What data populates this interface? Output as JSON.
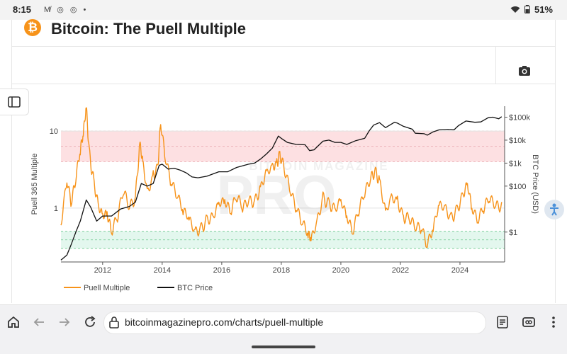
{
  "status_bar": {
    "time": "8:15",
    "left_icons": "M̸ ◎ ◎ •",
    "battery": "51%"
  },
  "header": {
    "logo_symbol": "₿",
    "title": "Bitcoin: The Puell Multiple"
  },
  "browser": {
    "url": "bitcoinmagazinepro.com/charts/puell-multiple"
  },
  "colors": {
    "accent": "#f7931a",
    "price_line": "#111111",
    "red_band": "#fde0e2",
    "green_band": "#e3f7ee"
  },
  "chart_data": {
    "type": "line",
    "title": "Bitcoin: The Puell Multiple",
    "watermark": "BITCOIN MAGAZINE",
    "watermark_sub": "PRO",
    "ylabel_left": "Puell 365 Multiple",
    "ylabel_right": "BTC Price (USD)",
    "x_ticks": [
      "2012",
      "2014",
      "2016",
      "2018",
      "2020",
      "2022",
      "2024"
    ],
    "xlim": [
      2010.6,
      2025.5
    ],
    "y_left_ticks": [
      {
        "value": 1,
        "label": "1"
      },
      {
        "value": 10,
        "label": "10"
      }
    ],
    "y_left_range": [
      0.2,
      21
    ],
    "y_right_ticks": [
      {
        "value": 1,
        "label": "$1"
      },
      {
        "value": 100,
        "label": "$100"
      },
      {
        "value": 1000,
        "label": "$1k"
      },
      {
        "value": 10000,
        "label": "$10k"
      },
      {
        "value": 100000,
        "label": "$100k"
      }
    ],
    "y_right_range": [
      0.05,
      300000
    ],
    "bands": [
      {
        "name": "high zone",
        "from": 4,
        "to": 10,
        "color": "#fde0e2"
      },
      {
        "name": "low zone",
        "from": 0.3,
        "to": 0.5,
        "color": "#e3f7ee"
      }
    ],
    "legend": [
      {
        "name": "Puell Multiple",
        "color": "#f7931a"
      },
      {
        "name": "BTC Price",
        "color": "#111111"
      }
    ],
    "series": [
      {
        "name": "Puell Multiple",
        "color": "#f7931a",
        "points": [
          [
            2010.6,
            0.6
          ],
          [
            2010.8,
            2.0
          ],
          [
            2010.95,
            1.2
          ],
          [
            2011.1,
            3.0
          ],
          [
            2011.25,
            6.0
          ],
          [
            2011.35,
            8.0
          ],
          [
            2011.45,
            20.0
          ],
          [
            2011.55,
            6.0
          ],
          [
            2011.7,
            2.5
          ],
          [
            2011.85,
            1.0
          ],
          [
            2012.0,
            0.7
          ],
          [
            2012.15,
            0.9
          ],
          [
            2012.3,
            0.6
          ],
          [
            2012.5,
            0.8
          ],
          [
            2012.7,
            1.5
          ],
          [
            2012.9,
            1.0
          ],
          [
            2013.1,
            1.6
          ],
          [
            2013.25,
            7.5
          ],
          [
            2013.35,
            3.5
          ],
          [
            2013.5,
            1.4
          ],
          [
            2013.7,
            2.8
          ],
          [
            2013.85,
            4.0
          ],
          [
            2013.95,
            12.5
          ],
          [
            2014.1,
            4.0
          ],
          [
            2014.3,
            2.2
          ],
          [
            2014.5,
            1.8
          ],
          [
            2014.7,
            1.0
          ],
          [
            2014.9,
            0.65
          ],
          [
            2015.1,
            0.45
          ],
          [
            2015.3,
            0.6
          ],
          [
            2015.5,
            0.8
          ],
          [
            2015.7,
            0.7
          ],
          [
            2015.9,
            1.0
          ],
          [
            2016.1,
            1.3
          ],
          [
            2016.3,
            1.1
          ],
          [
            2016.5,
            1.5
          ],
          [
            2016.7,
            0.9
          ],
          [
            2016.9,
            1.2
          ],
          [
            2017.1,
            1.4
          ],
          [
            2017.3,
            2.0
          ],
          [
            2017.5,
            2.6
          ],
          [
            2017.7,
            3.0
          ],
          [
            2017.85,
            4.0
          ],
          [
            2017.95,
            6.0
          ],
          [
            2018.1,
            3.2
          ],
          [
            2018.3,
            1.5
          ],
          [
            2018.5,
            1.0
          ],
          [
            2018.7,
            0.8
          ],
          [
            2018.9,
            0.5
          ],
          [
            2019.0,
            0.35
          ],
          [
            2019.2,
            0.6
          ],
          [
            2019.4,
            1.5
          ],
          [
            2019.6,
            1.3
          ],
          [
            2019.8,
            0.9
          ],
          [
            2020.0,
            1.1
          ],
          [
            2020.2,
            0.8
          ],
          [
            2020.4,
            0.6
          ],
          [
            2020.6,
            1.0
          ],
          [
            2020.8,
            1.4
          ],
          [
            2021.0,
            2.3
          ],
          [
            2021.15,
            3.5
          ],
          [
            2021.3,
            2.5
          ],
          [
            2021.5,
            0.8
          ],
          [
            2021.7,
            1.2
          ],
          [
            2021.9,
            1.3
          ],
          [
            2022.1,
            0.9
          ],
          [
            2022.3,
            0.75
          ],
          [
            2022.5,
            0.5
          ],
          [
            2022.7,
            0.55
          ],
          [
            2022.9,
            0.4
          ],
          [
            2023.1,
            0.6
          ],
          [
            2023.3,
            1.0
          ],
          [
            2023.5,
            0.9
          ],
          [
            2023.7,
            0.8
          ],
          [
            2023.9,
            1.1
          ],
          [
            2024.1,
            1.4
          ],
          [
            2024.25,
            1.8
          ],
          [
            2024.4,
            1.0
          ],
          [
            2024.6,
            0.85
          ],
          [
            2024.8,
            1.1
          ],
          [
            2025.0,
            1.2
          ],
          [
            2025.2,
            1.0
          ],
          [
            2025.4,
            1.2
          ]
        ]
      },
      {
        "name": "BTC Price",
        "color": "#111111",
        "points": [
          [
            2010.6,
            0.06
          ],
          [
            2010.8,
            0.1
          ],
          [
            2010.95,
            0.3
          ],
          [
            2011.1,
            1
          ],
          [
            2011.25,
            3
          ],
          [
            2011.45,
            25
          ],
          [
            2011.6,
            12
          ],
          [
            2011.8,
            3
          ],
          [
            2012.0,
            5
          ],
          [
            2012.3,
            5
          ],
          [
            2012.6,
            10
          ],
          [
            2012.9,
            13
          ],
          [
            2013.1,
            20
          ],
          [
            2013.3,
            130
          ],
          [
            2013.5,
            100
          ],
          [
            2013.7,
            130
          ],
          [
            2013.9,
            800
          ],
          [
            2014.0,
            900
          ],
          [
            2014.2,
            550
          ],
          [
            2014.4,
            600
          ],
          [
            2014.6,
            500
          ],
          [
            2014.8,
            380
          ],
          [
            2015.0,
            250
          ],
          [
            2015.2,
            230
          ],
          [
            2015.5,
            270
          ],
          [
            2015.9,
            420
          ],
          [
            2016.2,
            420
          ],
          [
            2016.5,
            650
          ],
          [
            2016.9,
            900
          ],
          [
            2017.1,
            1000
          ],
          [
            2017.3,
            1500
          ],
          [
            2017.5,
            2500
          ],
          [
            2017.7,
            4500
          ],
          [
            2017.9,
            15000
          ],
          [
            2018.0,
            12000
          ],
          [
            2018.2,
            8000
          ],
          [
            2018.5,
            6500
          ],
          [
            2018.8,
            6300
          ],
          [
            2018.95,
            3500
          ],
          [
            2019.1,
            3800
          ],
          [
            2019.4,
            9000
          ],
          [
            2019.6,
            10000
          ],
          [
            2019.8,
            8000
          ],
          [
            2020.0,
            8000
          ],
          [
            2020.2,
            6500
          ],
          [
            2020.5,
            9500
          ],
          [
            2020.8,
            12000
          ],
          [
            2020.95,
            25000
          ],
          [
            2021.1,
            45000
          ],
          [
            2021.3,
            58000
          ],
          [
            2021.5,
            35000
          ],
          [
            2021.8,
            60000
          ],
          [
            2021.9,
            55000
          ],
          [
            2022.1,
            40000
          ],
          [
            2022.4,
            30000
          ],
          [
            2022.5,
            20000
          ],
          [
            2022.8,
            19000
          ],
          [
            2022.9,
            16500
          ],
          [
            2023.1,
            23000
          ],
          [
            2023.3,
            28000
          ],
          [
            2023.6,
            29000
          ],
          [
            2023.8,
            28000
          ],
          [
            2023.95,
            43000
          ],
          [
            2024.2,
            68000
          ],
          [
            2024.5,
            60000
          ],
          [
            2024.7,
            62000
          ],
          [
            2024.95,
            95000
          ],
          [
            2025.1,
            100000
          ],
          [
            2025.3,
            85000
          ],
          [
            2025.4,
            105000
          ]
        ]
      }
    ]
  }
}
